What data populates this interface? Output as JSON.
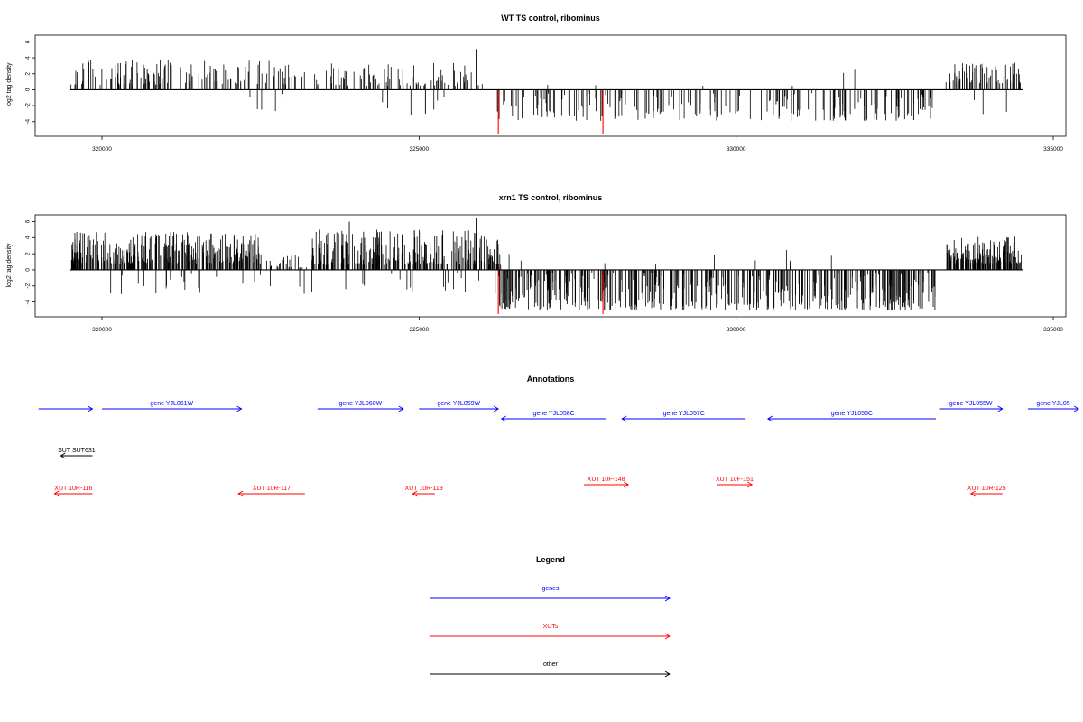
{
  "colors": {
    "bar": "#000000",
    "marker": "#ff0000",
    "gene": "#0000ff",
    "xut": "#ff0000",
    "other": "#000000"
  },
  "chart_data": [
    {
      "type": "bar",
      "title": "WT TS control, ribominus",
      "ylabel": "log2 tag density",
      "xlim": [
        319000,
        335000
      ],
      "ylim": [
        -5.5,
        6.5
      ],
      "xticks": [
        320000,
        325000,
        330000,
        335000
      ],
      "yticks": [
        -4,
        -2,
        0,
        2,
        4,
        6
      ],
      "markers": [
        {
          "x": 326250,
          "y": -5.5
        },
        {
          "x": 327900,
          "y": -5.5
        }
      ],
      "regions": [
        {
          "x0": 319500,
          "x1": 323200,
          "count": 140,
          "lo": 0.6,
          "hi": 3.8
        },
        {
          "x0": 322300,
          "x1": 323300,
          "count": 6,
          "lo": -3.2,
          "hi": -0.5
        },
        {
          "x0": 323350,
          "x1": 326050,
          "count": 90,
          "lo": 0.5,
          "hi": 3.4
        },
        {
          "x0": 324000,
          "x1": 325400,
          "count": 8,
          "lo": -3.2,
          "hi": -0.6
        },
        {
          "x0": 326200,
          "x1": 333100,
          "count": 200,
          "lo": -3.9,
          "hi": -0.4
        },
        {
          "x0": 326700,
          "x1": 332300,
          "count": 6,
          "lo": 0.5,
          "hi": 2.5
        },
        {
          "x0": 333300,
          "x1": 334500,
          "count": 70,
          "lo": 0.8,
          "hi": 3.4
        },
        {
          "x0": 333700,
          "x1": 334300,
          "count": 3,
          "lo": -3.8,
          "hi": -1.0
        }
      ],
      "peaks": [
        {
          "x": 325900,
          "y": 5.1
        },
        {
          "x": 325100,
          "y": -3.0
        },
        {
          "x": 332800,
          "y": -3.8
        }
      ]
    },
    {
      "type": "bar",
      "title": "xrn1 TS control, ribominus",
      "ylabel": "log2 tag density",
      "xlim": [
        319000,
        335000
      ],
      "ylim": [
        -5.5,
        6.5
      ],
      "xticks": [
        320000,
        325000,
        330000,
        335000
      ],
      "yticks": [
        -4,
        -2,
        0,
        2,
        4,
        6
      ],
      "markers": [
        {
          "x": 326250,
          "y": -5.5
        },
        {
          "x": 327900,
          "y": -5.5
        }
      ],
      "regions": [
        {
          "x0": 319500,
          "x1": 322500,
          "count": 300,
          "lo": 0.8,
          "hi": 4.7
        },
        {
          "x0": 322500,
          "x1": 323300,
          "count": 25,
          "lo": 0.3,
          "hi": 2.0
        },
        {
          "x0": 323300,
          "x1": 326300,
          "count": 260,
          "lo": 0.6,
          "hi": 5.0
        },
        {
          "x0": 319600,
          "x1": 326100,
          "count": 40,
          "lo": -3.0,
          "hi": -0.4
        },
        {
          "x0": 326200,
          "x1": 333200,
          "count": 460,
          "lo": -5.0,
          "hi": -0.3
        },
        {
          "x0": 326400,
          "x1": 332800,
          "count": 10,
          "lo": 0.5,
          "hi": 2.5
        },
        {
          "x0": 333300,
          "x1": 334500,
          "count": 150,
          "lo": 0.8,
          "hi": 4.2
        }
      ],
      "peaks": [
        {
          "x": 325900,
          "y": 6.4
        },
        {
          "x": 323900,
          "y": 6.0
        },
        {
          "x": 330000,
          "y": -5.0
        },
        {
          "x": 332800,
          "y": -4.2
        }
      ]
    }
  ],
  "annotations": {
    "title": "Annotations",
    "items": [
      {
        "label": "",
        "type": "gene",
        "x0": 319000,
        "x1": 319850,
        "dir": "+",
        "row": 0
      },
      {
        "label": "gene YJL061W",
        "type": "gene",
        "x0": 320000,
        "x1": 322200,
        "dir": "+",
        "row": 0
      },
      {
        "label": "gene YJL060W",
        "type": "gene",
        "x0": 323400,
        "x1": 324750,
        "dir": "+",
        "row": 0
      },
      {
        "label": "gene YJL059W",
        "type": "gene",
        "x0": 325000,
        "x1": 326250,
        "dir": "+",
        "row": 0
      },
      {
        "label": "gene YJL058C",
        "type": "gene",
        "x0": 326300,
        "x1": 327950,
        "dir": "-",
        "row": 1
      },
      {
        "label": "gene YJL057C",
        "type": "gene",
        "x0": 328200,
        "x1": 330150,
        "dir": "-",
        "row": 1
      },
      {
        "label": "gene YJL056C",
        "type": "gene",
        "x0": 330500,
        "x1": 333150,
        "dir": "-",
        "row": 1
      },
      {
        "label": "gene YJL055W",
        "type": "gene",
        "x0": 333200,
        "x1": 334200,
        "dir": "+",
        "row": 0
      },
      {
        "label": "gene YJL05",
        "type": "gene",
        "x0": 334600,
        "x1": 335400,
        "dir": "+",
        "row": 0
      },
      {
        "label": "SUT SUT631",
        "type": "other",
        "x0": 319350,
        "x1": 319850,
        "dir": "-",
        "row": 2
      },
      {
        "label": "XUT 10R-116",
        "type": "xut",
        "x0": 319250,
        "x1": 319850,
        "dir": "-",
        "row": 3
      },
      {
        "label": "XUT 10R-117",
        "type": "xut",
        "x0": 322150,
        "x1": 323200,
        "dir": "-",
        "row": 3
      },
      {
        "label": "XUT 10R-119",
        "type": "xut",
        "x0": 324900,
        "x1": 325250,
        "dir": "-",
        "row": 3
      },
      {
        "label": "XUT 10F-148",
        "type": "xut",
        "x0": 327600,
        "x1": 328300,
        "dir": "+",
        "row": 4
      },
      {
        "label": "XUT 10F-151",
        "type": "xut",
        "x0": 329700,
        "x1": 330250,
        "dir": "+",
        "row": 4
      },
      {
        "label": "XUT 10R-125",
        "type": "xut",
        "x0": 333700,
        "x1": 334200,
        "dir": "-",
        "row": 3
      }
    ]
  },
  "legend": {
    "title": "Legend",
    "items": [
      {
        "label": "genes",
        "type": "gene"
      },
      {
        "label": "XUTs",
        "type": "xut"
      },
      {
        "label": "other",
        "type": "other"
      }
    ]
  }
}
